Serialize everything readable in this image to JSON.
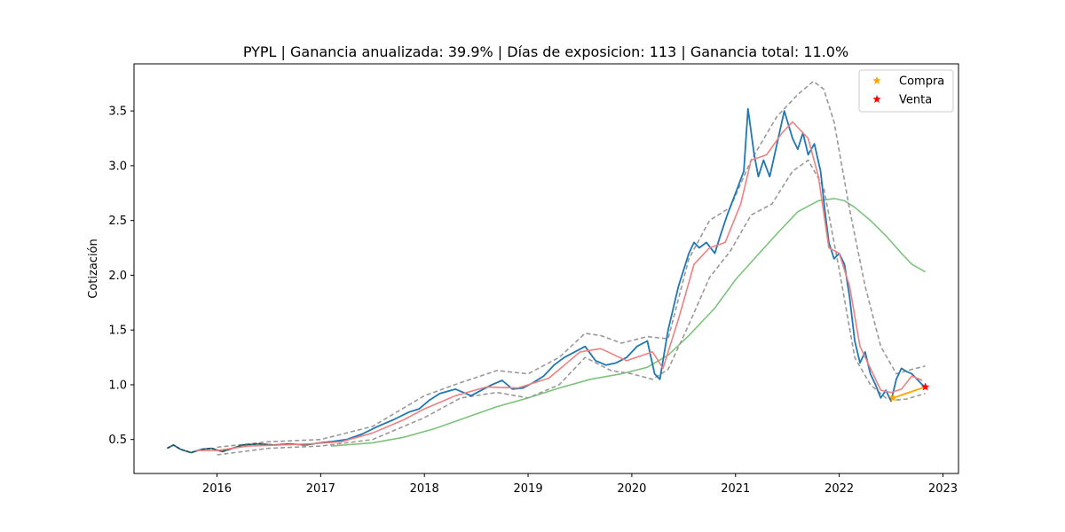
{
  "chart_data": {
    "type": "line",
    "title": "PYPL | Ganancia anualizada:  39.9% | Días de exposicion:    113 | Ganancia total:  11.0%",
    "xlabel": "",
    "ylabel": "Cotización",
    "xlim": [
      2015.2,
      2023.15
    ],
    "ylim": [
      0.19,
      3.93
    ],
    "xticks": [
      2016,
      2017,
      2018,
      2019,
      2020,
      2021,
      2022,
      2023
    ],
    "yticks": [
      0.5,
      1.0,
      1.5,
      2.0,
      2.5,
      3.0,
      3.5
    ],
    "grid": false,
    "legend_position": "upper right",
    "colors": {
      "price": "#1f77b4",
      "short_ma": "#f08080",
      "bands": "#999999",
      "long_ma": "#7cc47c",
      "trade_line": "#ffa500",
      "compra": "#ffa500",
      "venta": "#ff0000",
      "early_price": "#2c4a2c"
    },
    "legend": [
      {
        "label": "Compra",
        "marker": "star",
        "color": "#ffa500"
      },
      {
        "label": "Venta",
        "marker": "star",
        "color": "#ff0000"
      }
    ],
    "series": [
      {
        "name": "",
        "role": "price",
        "x": [
          2015.52,
          2015.58,
          2015.65,
          2015.75,
          2015.85,
          2015.95,
          2016.05,
          2016.15,
          2016.25,
          2016.4,
          2016.55,
          2016.7,
          2016.85,
          2017.0,
          2017.1,
          2017.25,
          2017.4,
          2017.55,
          2017.7,
          2017.85,
          2017.95,
          2018.05,
          2018.15,
          2018.3,
          2018.45,
          2018.55,
          2018.65,
          2018.75,
          2018.85,
          2018.95,
          2019.05,
          2019.15,
          2019.25,
          2019.35,
          2019.45,
          2019.55,
          2019.65,
          2019.75,
          2019.85,
          2019.95,
          2020.05,
          2020.15,
          2020.22,
          2020.27,
          2020.35,
          2020.45,
          2020.55,
          2020.6,
          2020.65,
          2020.72,
          2020.8,
          2020.85,
          2020.92,
          2021.0,
          2021.08,
          2021.12,
          2021.18,
          2021.22,
          2021.27,
          2021.33,
          2021.4,
          2021.47,
          2021.55,
          2021.6,
          2021.65,
          2021.7,
          2021.76,
          2021.82,
          2021.86,
          2021.9,
          2021.95,
          2022.0,
          2022.05,
          2022.1,
          2022.15,
          2022.2,
          2022.25,
          2022.3,
          2022.35,
          2022.4,
          2022.45,
          2022.5,
          2022.55,
          2022.6,
          2022.65,
          2022.7,
          2022.75,
          2022.8,
          2022.83
        ],
        "values": [
          0.42,
          0.45,
          0.41,
          0.38,
          0.41,
          0.42,
          0.39,
          0.42,
          0.45,
          0.46,
          0.45,
          0.46,
          0.45,
          0.47,
          0.48,
          0.5,
          0.55,
          0.62,
          0.68,
          0.75,
          0.78,
          0.86,
          0.92,
          0.96,
          0.9,
          0.95,
          1.0,
          1.04,
          0.96,
          0.97,
          1.02,
          1.08,
          1.18,
          1.25,
          1.3,
          1.35,
          1.22,
          1.18,
          1.2,
          1.25,
          1.35,
          1.4,
          1.1,
          1.05,
          1.5,
          1.9,
          2.2,
          2.3,
          2.25,
          2.3,
          2.2,
          2.35,
          2.55,
          2.75,
          2.95,
          3.52,
          3.1,
          2.9,
          3.05,
          2.9,
          3.2,
          3.5,
          3.25,
          3.15,
          3.3,
          3.1,
          3.2,
          2.95,
          2.6,
          2.3,
          2.15,
          2.2,
          2.1,
          1.8,
          1.4,
          1.2,
          1.3,
          1.1,
          1.0,
          0.88,
          0.95,
          0.85,
          1.05,
          1.15,
          1.12,
          1.1,
          1.05,
          1.0,
          0.98
        ]
      },
      {
        "name": "",
        "role": "early_price",
        "x": [
          2015.52,
          2015.58,
          2015.65,
          2015.75,
          2015.85,
          2015.95,
          2016.05,
          2016.15,
          2016.25,
          2016.4,
          2016.55,
          2016.7,
          2016.85,
          2017.0,
          2017.1
        ],
        "values": [
          0.42,
          0.45,
          0.41,
          0.38,
          0.41,
          0.42,
          0.39,
          0.42,
          0.45,
          0.46,
          0.45,
          0.46,
          0.45,
          0.47,
          0.48
        ]
      },
      {
        "name": "",
        "role": "short_ma",
        "x": [
          2015.8,
          2016.0,
          2016.3,
          2016.6,
          2016.9,
          2017.2,
          2017.5,
          2017.8,
          2018.0,
          2018.3,
          2018.6,
          2018.9,
          2019.2,
          2019.5,
          2019.7,
          2019.95,
          2020.2,
          2020.3,
          2020.45,
          2020.6,
          2020.75,
          2020.9,
          2021.05,
          2021.15,
          2021.3,
          2021.45,
          2021.55,
          2021.7,
          2021.8,
          2021.9,
          2022.0,
          2022.1,
          2022.2,
          2022.3,
          2022.4,
          2022.5,
          2022.6,
          2022.7,
          2022.8
        ],
        "values": [
          0.4,
          0.4,
          0.44,
          0.45,
          0.46,
          0.48,
          0.56,
          0.68,
          0.78,
          0.9,
          0.98,
          0.97,
          1.06,
          1.3,
          1.33,
          1.22,
          1.3,
          1.15,
          1.6,
          2.1,
          2.25,
          2.3,
          2.65,
          3.05,
          3.1,
          3.3,
          3.4,
          3.25,
          2.9,
          2.25,
          2.2,
          1.9,
          1.35,
          1.15,
          0.95,
          0.93,
          0.96,
          1.08,
          1.04
        ]
      },
      {
        "name": "",
        "role": "band_upper",
        "x": [
          2016.0,
          2016.5,
          2017.0,
          2017.5,
          2018.0,
          2018.35,
          2018.7,
          2019.0,
          2019.3,
          2019.55,
          2019.7,
          2019.9,
          2020.15,
          2020.35,
          2020.55,
          2020.75,
          2020.95,
          2021.15,
          2021.4,
          2021.6,
          2021.75,
          2021.85,
          2021.95,
          2022.1,
          2022.25,
          2022.4,
          2022.55,
          2022.7,
          2022.83
        ],
        "values": [
          0.43,
          0.48,
          0.5,
          0.62,
          0.9,
          1.02,
          1.13,
          1.1,
          1.25,
          1.47,
          1.45,
          1.38,
          1.44,
          1.42,
          2.15,
          2.5,
          2.62,
          3.05,
          3.45,
          3.65,
          3.77,
          3.7,
          3.4,
          2.6,
          1.9,
          1.35,
          1.1,
          1.14,
          1.17
        ]
      },
      {
        "name": "",
        "role": "band_lower",
        "x": [
          2016.0,
          2016.5,
          2017.0,
          2017.5,
          2018.0,
          2018.35,
          2018.7,
          2019.0,
          2019.3,
          2019.55,
          2019.8,
          2020.0,
          2020.2,
          2020.35,
          2020.55,
          2020.75,
          2020.95,
          2021.15,
          2021.35,
          2021.55,
          2021.7,
          2021.85,
          2022.0,
          2022.15,
          2022.3,
          2022.45,
          2022.55,
          2022.65,
          2022.83
        ],
        "values": [
          0.36,
          0.42,
          0.44,
          0.5,
          0.7,
          0.88,
          0.93,
          0.88,
          1.0,
          1.25,
          1.13,
          1.1,
          1.05,
          1.14,
          1.55,
          1.98,
          2.22,
          2.55,
          2.65,
          2.95,
          3.05,
          2.8,
          2.05,
          1.25,
          1.0,
          0.88,
          0.86,
          0.87,
          0.92
        ]
      },
      {
        "name": "",
        "role": "long_ma",
        "x": [
          2017.1,
          2017.5,
          2017.8,
          2018.1,
          2018.4,
          2018.7,
          2019.0,
          2019.3,
          2019.6,
          2019.9,
          2020.15,
          2020.35,
          2020.55,
          2020.8,
          2021.0,
          2021.2,
          2021.4,
          2021.6,
          2021.8,
          2021.95,
          2022.05,
          2022.15,
          2022.3,
          2022.45,
          2022.6,
          2022.7,
          2022.83
        ],
        "values": [
          0.44,
          0.47,
          0.52,
          0.6,
          0.7,
          0.8,
          0.88,
          0.97,
          1.05,
          1.1,
          1.16,
          1.27,
          1.45,
          1.7,
          1.96,
          2.17,
          2.38,
          2.58,
          2.68,
          2.7,
          2.68,
          2.62,
          2.5,
          2.36,
          2.2,
          2.1,
          2.03
        ]
      },
      {
        "name": "",
        "role": "trade_line",
        "x": [
          2022.52,
          2022.83
        ],
        "values": [
          0.88,
          0.98
        ]
      }
    ],
    "markers": [
      {
        "label": "Compra",
        "x": 2022.52,
        "y": 0.88
      },
      {
        "label": "Venta",
        "x": 2022.83,
        "y": 0.98
      }
    ]
  }
}
